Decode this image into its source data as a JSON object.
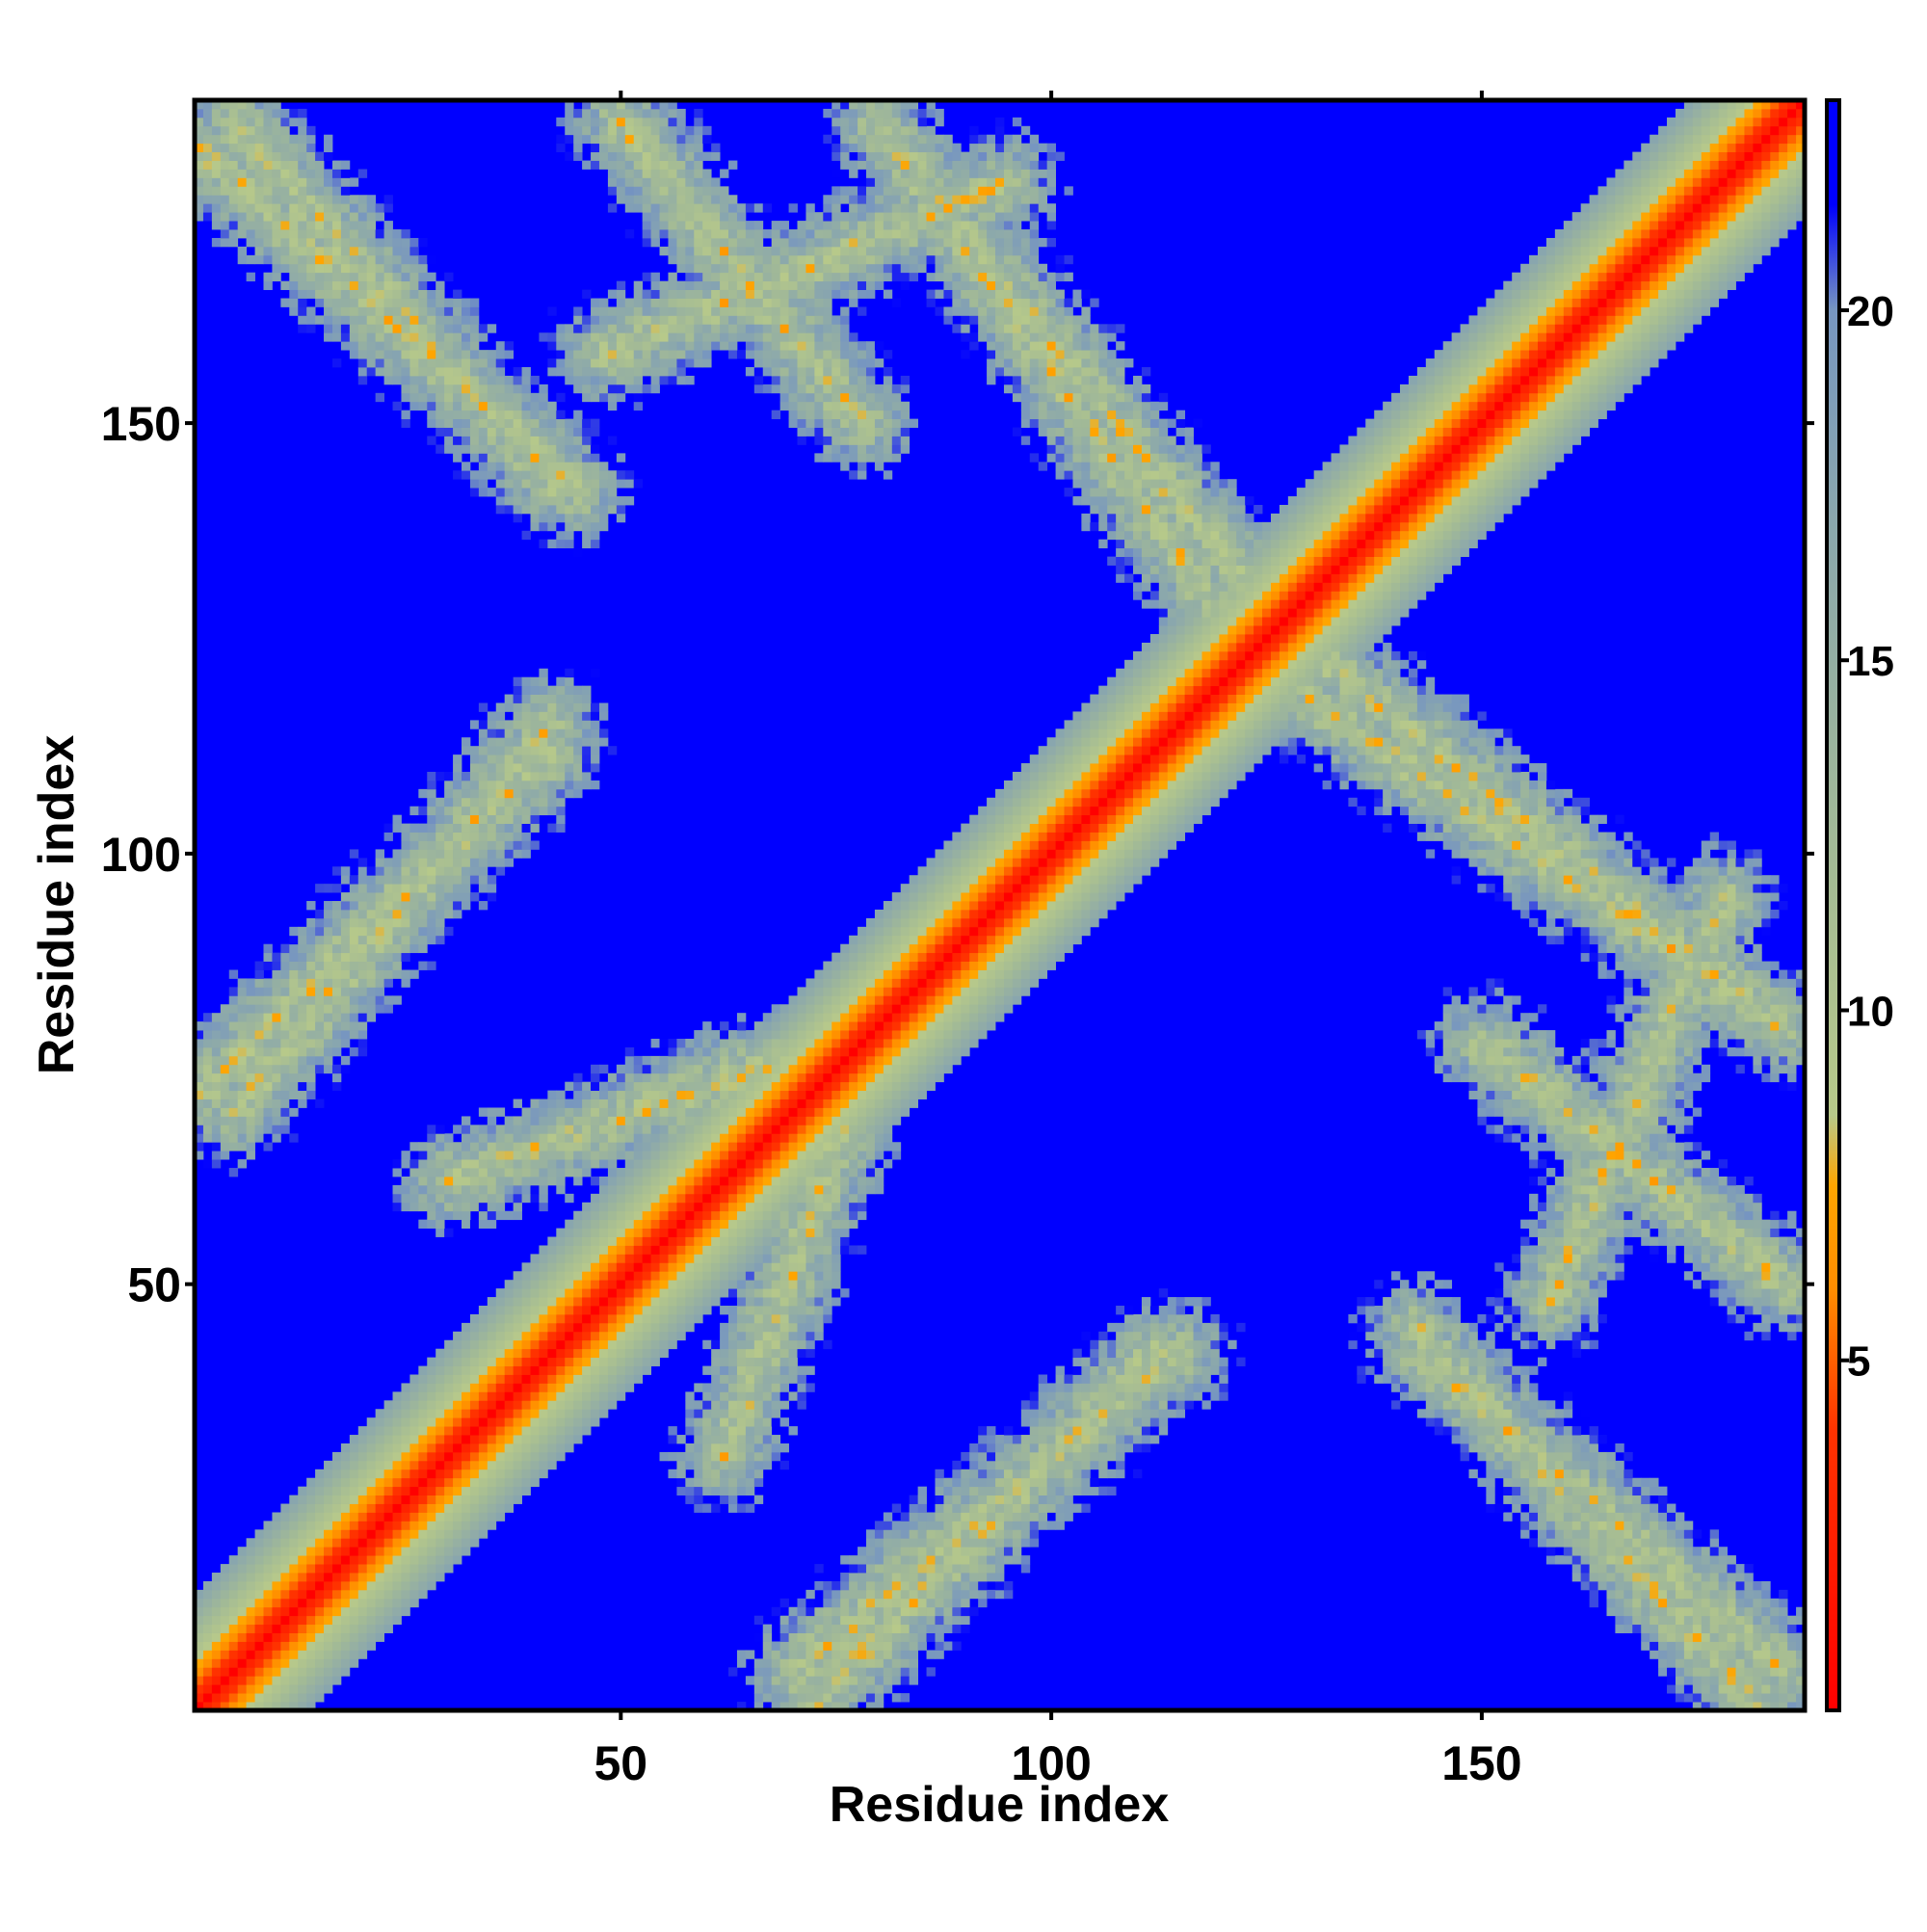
{
  "chart_data": {
    "type": "heatmap",
    "title": "",
    "xlabel": "Residue index",
    "ylabel": "Residue index",
    "xlim": [
      1,
      187
    ],
    "ylim": [
      1,
      187
    ],
    "x_ticks": [
      50,
      100,
      150
    ],
    "y_ticks": [
      50,
      100,
      150
    ],
    "colorbar": {
      "range": [
        0,
        23
      ],
      "ticks": [
        5,
        10,
        15,
        20
      ],
      "stops": [
        {
          "value": 0,
          "color": "#ff0000"
        },
        {
          "value": 4,
          "color": "#ff3300"
        },
        {
          "value": 6,
          "color": "#ff8c00"
        },
        {
          "value": 7.5,
          "color": "#ffa500"
        },
        {
          "value": 8.5,
          "color": "#b7c98a"
        },
        {
          "value": 12,
          "color": "#a4bb95"
        },
        {
          "value": 17,
          "color": "#8aa7ad"
        },
        {
          "value": 20,
          "color": "#7796c0"
        },
        {
          "value": 21.5,
          "color": "#0000ff"
        }
      ]
    },
    "cutoff_value": 22,
    "background_color": "#0000ff",
    "structure": {
      "diagonal_band_width": 6,
      "contact_bands": [
        {
          "name": "helix-hairpin-lower-left",
          "from": [
            1,
            72
          ],
          "to": [
            42,
            112
          ],
          "width": 6
        },
        {
          "name": "upper-left-strand-pair",
          "from": [
            1,
            182
          ],
          "to": [
            45,
            142
          ],
          "width": 6
        },
        {
          "name": "upper-middle-segment",
          "from": [
            48,
            158
          ],
          "to": [
            95,
            178
          ],
          "width": 6
        },
        {
          "name": "upper-right-antiparallel",
          "from": [
            85,
            178
          ],
          "to": [
            122,
            132
          ],
          "width": 6
        },
        {
          "name": "right-middle-antiparallel",
          "from": [
            130,
            118
          ],
          "to": [
            185,
            80
          ],
          "width": 6
        },
        {
          "name": "right-lower-segment",
          "from": [
            150,
            78
          ],
          "to": [
            185,
            50
          ],
          "width": 6
        },
        {
          "name": "right-bottom-antiparallel",
          "from": [
            143,
            42
          ],
          "to": [
            185,
            5
          ],
          "width": 6
        },
        {
          "name": "lower-middle-segment",
          "from": [
            70,
            5
          ],
          "to": [
            115,
            42
          ],
          "width": 6
        },
        {
          "name": "mid-cross-structure",
          "from": [
            30,
            62
          ],
          "to": [
            85,
            82
          ],
          "width": 5
        }
      ]
    }
  }
}
